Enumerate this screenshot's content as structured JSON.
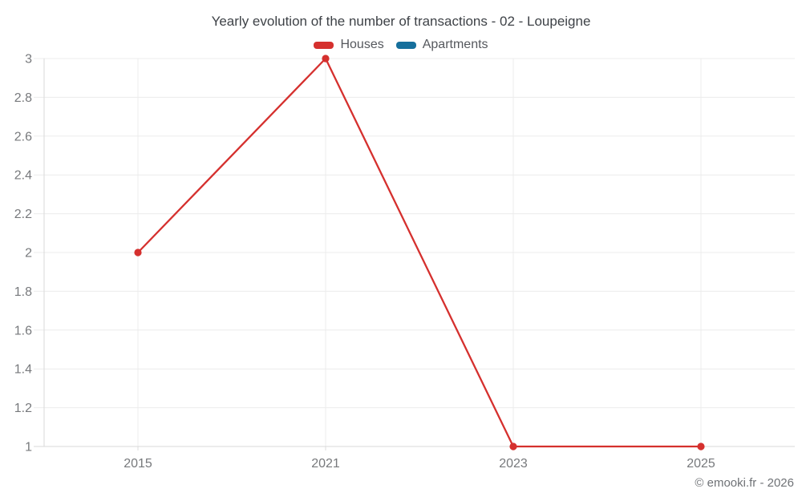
{
  "watermark": "© emooki.fr - 2026",
  "chart_data": {
    "type": "line",
    "title": "Yearly evolution of the number of transactions - 02 - Loupeigne",
    "categories": [
      "2015",
      "2021",
      "2023",
      "2025"
    ],
    "series": [
      {
        "name": "Houses",
        "color": "#d5302e",
        "values": [
          2,
          3,
          1,
          1
        ]
      },
      {
        "name": "Apartments",
        "color": "#166f9c",
        "values": []
      }
    ],
    "xlabel": "",
    "ylabel": "",
    "ylim": [
      1,
      3
    ],
    "yticks": [
      1,
      1.2,
      1.4,
      1.6,
      1.8,
      2,
      2.2,
      2.4,
      2.6,
      2.8,
      3
    ],
    "ytick_labels": [
      "1",
      "1.2",
      "1.4",
      "1.6",
      "1.8",
      "2",
      "2.2",
      "2.4",
      "2.6",
      "2.8",
      "3"
    ],
    "grid": true,
    "legend_position": "top",
    "marker": "circle"
  }
}
